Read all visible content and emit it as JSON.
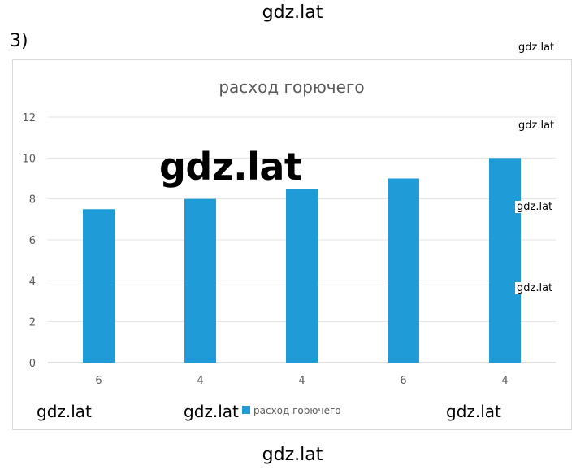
{
  "page": {
    "problem_label": "3)",
    "watermark_text": "gdz.lat"
  },
  "chart_data": {
    "type": "bar",
    "title": "расход горючего",
    "xlabel": "",
    "ylabel": "",
    "categories": [
      "6",
      "4",
      "4",
      "6",
      "4"
    ],
    "series": [
      {
        "name": "расход горючего",
        "values": [
          7.5,
          8,
          8.5,
          9,
          10
        ],
        "color": "#1f9bd7"
      }
    ],
    "ylim": [
      0,
      12
    ],
    "yticks": [
      "0",
      "2",
      "4",
      "6",
      "8",
      "10",
      "12"
    ],
    "grid": true,
    "legend_position": "bottom"
  }
}
